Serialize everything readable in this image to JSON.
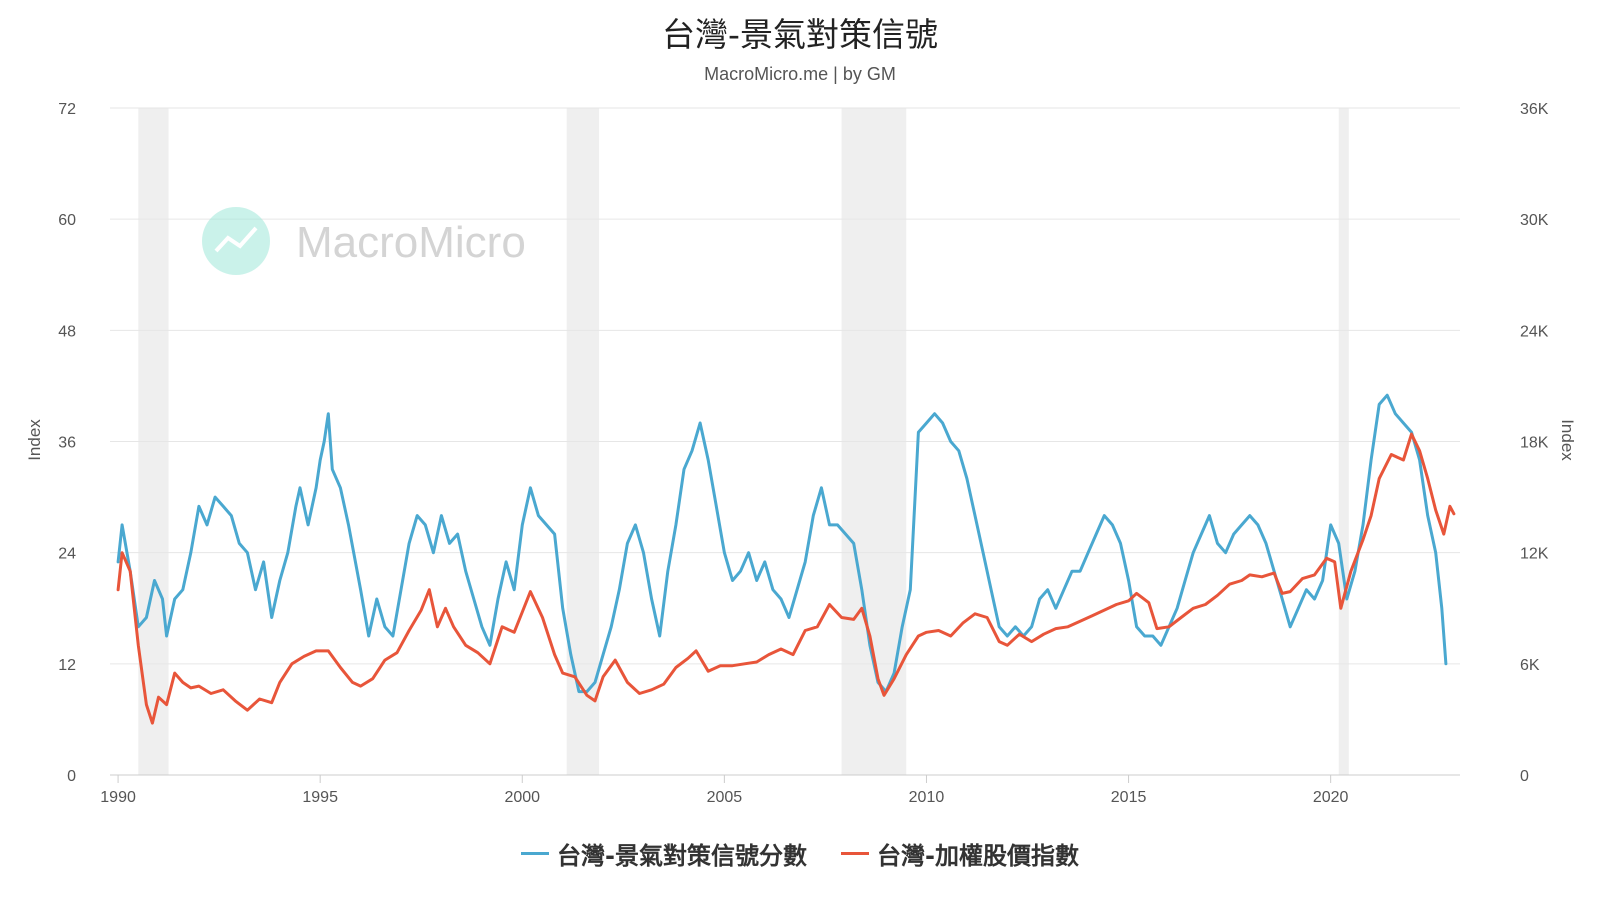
{
  "chart_data": {
    "type": "line",
    "title": "台灣-景氣對策信號",
    "subtitle": "MacroMicro.me | by GM",
    "watermark": "MacroMicro",
    "y_left": {
      "label": "Index",
      "min": 0,
      "max": 72,
      "ticks": [
        "0",
        "12",
        "24",
        "36",
        "48",
        "60",
        "72"
      ]
    },
    "y_right": {
      "label": "Index",
      "min": 0,
      "max": 36000,
      "ticks": [
        "0",
        "6K",
        "12K",
        "18K",
        "24K",
        "30K",
        "36K"
      ]
    },
    "x_axis": {
      "min": 1989.8,
      "max": 2023.2,
      "ticks": [
        "1990",
        "1995",
        "2000",
        "2005",
        "2010",
        "2015",
        "2020"
      ]
    },
    "recessions": [
      [
        1990.5,
        1991.25
      ],
      [
        2001.1,
        2001.9
      ],
      [
        2007.9,
        2009.5
      ],
      [
        2020.2,
        2020.45
      ]
    ],
    "grid": true,
    "legend_position": "bottom",
    "series": [
      {
        "name": "台灣-景氣對策信號分數",
        "color": "#4aa8d0",
        "axis": "left",
        "points": [
          [
            1990.0,
            23
          ],
          [
            1990.1,
            27
          ],
          [
            1990.3,
            22
          ],
          [
            1990.5,
            16
          ],
          [
            1990.7,
            17
          ],
          [
            1990.9,
            21
          ],
          [
            1991.1,
            19
          ],
          [
            1991.2,
            15
          ],
          [
            1991.4,
            19
          ],
          [
            1991.6,
            20
          ],
          [
            1991.8,
            24
          ],
          [
            1992.0,
            29
          ],
          [
            1992.2,
            27
          ],
          [
            1992.4,
            30
          ],
          [
            1992.6,
            29
          ],
          [
            1992.8,
            28
          ],
          [
            1993.0,
            25
          ],
          [
            1993.2,
            24
          ],
          [
            1993.4,
            20
          ],
          [
            1993.6,
            23
          ],
          [
            1993.8,
            17
          ],
          [
            1994.0,
            21
          ],
          [
            1994.2,
            24
          ],
          [
            1994.4,
            29
          ],
          [
            1994.5,
            31
          ],
          [
            1994.7,
            27
          ],
          [
            1994.9,
            31
          ],
          [
            1995.0,
            34
          ],
          [
            1995.1,
            36
          ],
          [
            1995.2,
            39
          ],
          [
            1995.3,
            33
          ],
          [
            1995.5,
            31
          ],
          [
            1995.7,
            27
          ],
          [
            1996.0,
            20
          ],
          [
            1996.2,
            15
          ],
          [
            1996.4,
            19
          ],
          [
            1996.6,
            16
          ],
          [
            1996.8,
            15
          ],
          [
            1997.0,
            20
          ],
          [
            1997.2,
            25
          ],
          [
            1997.4,
            28
          ],
          [
            1997.6,
            27
          ],
          [
            1997.8,
            24
          ],
          [
            1998.0,
            28
          ],
          [
            1998.2,
            25
          ],
          [
            1998.4,
            26
          ],
          [
            1998.6,
            22
          ],
          [
            1998.8,
            19
          ],
          [
            1999.0,
            16
          ],
          [
            1999.2,
            14
          ],
          [
            1999.4,
            19
          ],
          [
            1999.6,
            23
          ],
          [
            1999.8,
            20
          ],
          [
            2000.0,
            27
          ],
          [
            2000.2,
            31
          ],
          [
            2000.4,
            28
          ],
          [
            2000.6,
            27
          ],
          [
            2000.8,
            26
          ],
          [
            2001.0,
            18
          ],
          [
            2001.2,
            13
          ],
          [
            2001.4,
            9
          ],
          [
            2001.6,
            9
          ],
          [
            2001.8,
            10
          ],
          [
            2002.0,
            13
          ],
          [
            2002.2,
            16
          ],
          [
            2002.4,
            20
          ],
          [
            2002.6,
            25
          ],
          [
            2002.8,
            27
          ],
          [
            2003.0,
            24
          ],
          [
            2003.2,
            19
          ],
          [
            2003.4,
            15
          ],
          [
            2003.6,
            22
          ],
          [
            2003.8,
            27
          ],
          [
            2004.0,
            33
          ],
          [
            2004.2,
            35
          ],
          [
            2004.4,
            38
          ],
          [
            2004.6,
            34
          ],
          [
            2004.8,
            29
          ],
          [
            2005.0,
            24
          ],
          [
            2005.2,
            21
          ],
          [
            2005.4,
            22
          ],
          [
            2005.6,
            24
          ],
          [
            2005.8,
            21
          ],
          [
            2006.0,
            23
          ],
          [
            2006.2,
            20
          ],
          [
            2006.4,
            19
          ],
          [
            2006.6,
            17
          ],
          [
            2006.8,
            20
          ],
          [
            2007.0,
            23
          ],
          [
            2007.2,
            28
          ],
          [
            2007.4,
            31
          ],
          [
            2007.6,
            27
          ],
          [
            2007.8,
            27
          ],
          [
            2008.0,
            26
          ],
          [
            2008.2,
            25
          ],
          [
            2008.4,
            20
          ],
          [
            2008.6,
            14
          ],
          [
            2008.8,
            10
          ],
          [
            2009.0,
            9
          ],
          [
            2009.2,
            11
          ],
          [
            2009.4,
            16
          ],
          [
            2009.6,
            20
          ],
          [
            2009.8,
            37
          ],
          [
            2010.0,
            38
          ],
          [
            2010.2,
            39
          ],
          [
            2010.4,
            38
          ],
          [
            2010.6,
            36
          ],
          [
            2010.8,
            35
          ],
          [
            2011.0,
            32
          ],
          [
            2011.2,
            28
          ],
          [
            2011.4,
            24
          ],
          [
            2011.6,
            20
          ],
          [
            2011.8,
            16
          ],
          [
            2012.0,
            15
          ],
          [
            2012.2,
            16
          ],
          [
            2012.4,
            15
          ],
          [
            2012.6,
            16
          ],
          [
            2012.8,
            19
          ],
          [
            2013.0,
            20
          ],
          [
            2013.2,
            18
          ],
          [
            2013.4,
            20
          ],
          [
            2013.6,
            22
          ],
          [
            2013.8,
            22
          ],
          [
            2014.0,
            24
          ],
          [
            2014.2,
            26
          ],
          [
            2014.4,
            28
          ],
          [
            2014.6,
            27
          ],
          [
            2014.8,
            25
          ],
          [
            2015.0,
            21
          ],
          [
            2015.2,
            16
          ],
          [
            2015.4,
            15
          ],
          [
            2015.6,
            15
          ],
          [
            2015.8,
            14
          ],
          [
            2016.0,
            16
          ],
          [
            2016.2,
            18
          ],
          [
            2016.4,
            21
          ],
          [
            2016.6,
            24
          ],
          [
            2016.8,
            26
          ],
          [
            2017.0,
            28
          ],
          [
            2017.2,
            25
          ],
          [
            2017.4,
            24
          ],
          [
            2017.6,
            26
          ],
          [
            2017.8,
            27
          ],
          [
            2018.0,
            28
          ],
          [
            2018.2,
            27
          ],
          [
            2018.4,
            25
          ],
          [
            2018.6,
            22
          ],
          [
            2018.8,
            19
          ],
          [
            2019.0,
            16
          ],
          [
            2019.2,
            18
          ],
          [
            2019.4,
            20
          ],
          [
            2019.6,
            19
          ],
          [
            2019.8,
            21
          ],
          [
            2020.0,
            27
          ],
          [
            2020.2,
            25
          ],
          [
            2020.4,
            19
          ],
          [
            2020.6,
            22
          ],
          [
            2020.8,
            27
          ],
          [
            2021.0,
            34
          ],
          [
            2021.2,
            40
          ],
          [
            2021.4,
            41
          ],
          [
            2021.6,
            39
          ],
          [
            2021.8,
            38
          ],
          [
            2022.0,
            37
          ],
          [
            2022.2,
            34
          ],
          [
            2022.4,
            28
          ],
          [
            2022.6,
            24
          ],
          [
            2022.75,
            18
          ],
          [
            2022.85,
            12
          ]
        ]
      },
      {
        "name": "台灣-加權股價指數",
        "color": "#e8553a",
        "axis": "right",
        "points": [
          [
            1990.0,
            10000
          ],
          [
            1990.1,
            12000
          ],
          [
            1990.3,
            11000
          ],
          [
            1990.5,
            7000
          ],
          [
            1990.7,
            3800
          ],
          [
            1990.85,
            2800
          ],
          [
            1991.0,
            4200
          ],
          [
            1991.2,
            3800
          ],
          [
            1991.4,
            5500
          ],
          [
            1991.6,
            5000
          ],
          [
            1991.8,
            4700
          ],
          [
            1992.0,
            4800
          ],
          [
            1992.3,
            4400
          ],
          [
            1992.6,
            4600
          ],
          [
            1992.9,
            4000
          ],
          [
            1993.2,
            3500
          ],
          [
            1993.5,
            4100
          ],
          [
            1993.8,
            3900
          ],
          [
            1994.0,
            5000
          ],
          [
            1994.3,
            6000
          ],
          [
            1994.6,
            6400
          ],
          [
            1994.9,
            6700
          ],
          [
            1995.2,
            6700
          ],
          [
            1995.5,
            5800
          ],
          [
            1995.8,
            5000
          ],
          [
            1996.0,
            4800
          ],
          [
            1996.3,
            5200
          ],
          [
            1996.6,
            6200
          ],
          [
            1996.9,
            6600
          ],
          [
            1997.2,
            7800
          ],
          [
            1997.5,
            8900
          ],
          [
            1997.7,
            10000
          ],
          [
            1997.9,
            8000
          ],
          [
            1998.1,
            9000
          ],
          [
            1998.3,
            8000
          ],
          [
            1998.6,
            7000
          ],
          [
            1998.9,
            6600
          ],
          [
            1999.2,
            6000
          ],
          [
            1999.5,
            8000
          ],
          [
            1999.8,
            7700
          ],
          [
            2000.0,
            8800
          ],
          [
            2000.2,
            9900
          ],
          [
            2000.5,
            8500
          ],
          [
            2000.8,
            6500
          ],
          [
            2001.0,
            5500
          ],
          [
            2001.3,
            5300
          ],
          [
            2001.6,
            4300
          ],
          [
            2001.8,
            4000
          ],
          [
            2002.0,
            5300
          ],
          [
            2002.3,
            6200
          ],
          [
            2002.6,
            5000
          ],
          [
            2002.9,
            4400
          ],
          [
            2003.2,
            4600
          ],
          [
            2003.5,
            4900
          ],
          [
            2003.8,
            5800
          ],
          [
            2004.1,
            6300
          ],
          [
            2004.3,
            6700
          ],
          [
            2004.6,
            5600
          ],
          [
            2004.9,
            5900
          ],
          [
            2005.2,
            5900
          ],
          [
            2005.5,
            6000
          ],
          [
            2005.8,
            6100
          ],
          [
            2006.1,
            6500
          ],
          [
            2006.4,
            6800
          ],
          [
            2006.7,
            6500
          ],
          [
            2007.0,
            7800
          ],
          [
            2007.3,
            8000
          ],
          [
            2007.6,
            9200
          ],
          [
            2007.9,
            8500
          ],
          [
            2008.2,
            8400
          ],
          [
            2008.4,
            9000
          ],
          [
            2008.6,
            7500
          ],
          [
            2008.8,
            5200
          ],
          [
            2008.95,
            4300
          ],
          [
            2009.2,
            5200
          ],
          [
            2009.5,
            6500
          ],
          [
            2009.8,
            7500
          ],
          [
            2010.0,
            7700
          ],
          [
            2010.3,
            7800
          ],
          [
            2010.6,
            7500
          ],
          [
            2010.9,
            8200
          ],
          [
            2011.2,
            8700
          ],
          [
            2011.5,
            8500
          ],
          [
            2011.8,
            7200
          ],
          [
            2012.0,
            7000
          ],
          [
            2012.3,
            7600
          ],
          [
            2012.6,
            7200
          ],
          [
            2012.9,
            7600
          ],
          [
            2013.2,
            7900
          ],
          [
            2013.5,
            8000
          ],
          [
            2013.8,
            8300
          ],
          [
            2014.1,
            8600
          ],
          [
            2014.4,
            8900
          ],
          [
            2014.7,
            9200
          ],
          [
            2015.0,
            9400
          ],
          [
            2015.2,
            9800
          ],
          [
            2015.5,
            9300
          ],
          [
            2015.7,
            7900
          ],
          [
            2016.0,
            8000
          ],
          [
            2016.3,
            8500
          ],
          [
            2016.6,
            9000
          ],
          [
            2016.9,
            9200
          ],
          [
            2017.2,
            9700
          ],
          [
            2017.5,
            10300
          ],
          [
            2017.8,
            10500
          ],
          [
            2018.0,
            10800
          ],
          [
            2018.3,
            10700
          ],
          [
            2018.6,
            10900
          ],
          [
            2018.8,
            9800
          ],
          [
            2019.0,
            9900
          ],
          [
            2019.3,
            10600
          ],
          [
            2019.6,
            10800
          ],
          [
            2019.9,
            11700
          ],
          [
            2020.1,
            11500
          ],
          [
            2020.25,
            9000
          ],
          [
            2020.5,
            11000
          ],
          [
            2020.8,
            12700
          ],
          [
            2021.0,
            14000
          ],
          [
            2021.2,
            16000
          ],
          [
            2021.5,
            17300
          ],
          [
            2021.8,
            17000
          ],
          [
            2022.0,
            18400
          ],
          [
            2022.2,
            17500
          ],
          [
            2022.4,
            16000
          ],
          [
            2022.6,
            14300
          ],
          [
            2022.8,
            13000
          ],
          [
            2022.95,
            14500
          ],
          [
            2023.05,
            14100
          ]
        ]
      }
    ]
  }
}
